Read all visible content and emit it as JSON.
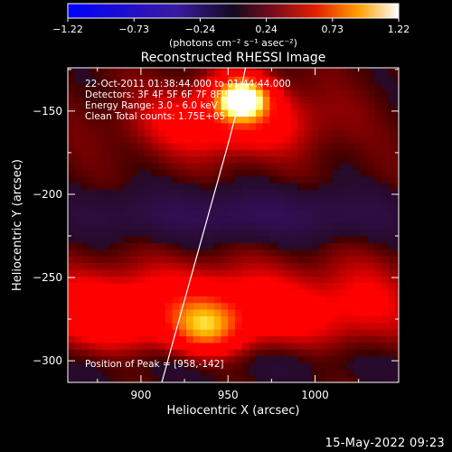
{
  "chart_data": {
    "type": "heatmap",
    "title": "Reconstructed RHESSI Image",
    "xlabel": "Heliocentric X (arcsec)",
    "ylabel": "Heliocentric Y (arcsec)",
    "xlim": [
      858,
      1048
    ],
    "ylim": [
      -313,
      -124
    ],
    "x_ticks": [
      900,
      950,
      1000
    ],
    "y_ticks": [
      -150,
      -200,
      -250,
      -300
    ],
    "colorbar": {
      "colormap": "hot-with-blue-negatives",
      "range": [
        -1.22,
        1.22
      ],
      "ticks": [
        "-1.22",
        "-0.73",
        "-0.24",
        "0.24",
        "0.73",
        "1.22"
      ],
      "label": "(photons cm⁻² s⁻¹ asec⁻²)"
    },
    "annotations": [
      "22-Oct-2011 01:38:44.000 to 01:44:44.000",
      "Detectors: 3F 4F 5F 6F 7F 8F 9F 10",
      "Energy Range: 3.0 - 6.0 keV",
      "Clean    Total counts: 1.75E+05"
    ],
    "peak_label": "Position of Peak = [958,-142]",
    "peak": {
      "x": 958,
      "y": -142
    },
    "sources": [
      {
        "x": 958,
        "y": -142,
        "sx": 11,
        "sy": 9,
        "amp": 1.25
      },
      {
        "x": 950,
        "y": -156,
        "sx": 34,
        "sy": 14,
        "amp": 0.45
      },
      {
        "x": 937,
        "y": -280,
        "sx": 13,
        "sy": 11,
        "amp": 0.55
      },
      {
        "x": 935,
        "y": -270,
        "sx": 58,
        "sy": 17,
        "amp": 0.5
      },
      {
        "x": 870,
        "y": -272,
        "sx": 18,
        "sy": 16,
        "amp": 0.18
      },
      {
        "x": 1030,
        "y": -262,
        "sx": 20,
        "sy": 18,
        "amp": 0.15
      },
      {
        "x": 960,
        "y": -212,
        "sx": 70,
        "sy": 10,
        "amp": -0.32
      },
      {
        "x": 945,
        "y": -300,
        "sx": 80,
        "sy": 10,
        "amp": -0.12
      }
    ],
    "limb_curve": [
      [
        912,
        -313
      ],
      [
        918,
        -290
      ],
      [
        926,
        -260
      ],
      [
        934,
        -230
      ],
      [
        942,
        -200
      ],
      [
        950,
        -170
      ],
      [
        955,
        -150
      ],
      [
        960,
        -124
      ]
    ]
  },
  "footer_date": "15-May-2022 09:23"
}
